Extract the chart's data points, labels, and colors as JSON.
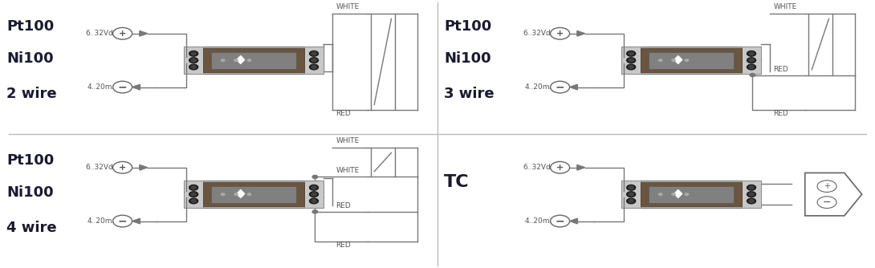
{
  "bg_color": "#ffffff",
  "line_color": "#666666",
  "text_dark": "#1a1a2e",
  "text_small": "#555555",
  "wire_gray": "#777777",
  "module_outer": "#a0a0a0",
  "module_mid": "#888888",
  "module_dark": "#5a4a3a",
  "module_inner": "#6a5a4a",
  "module_side": "#b0b0b0",
  "dot_color": "#1a1a1a",
  "sensor_fill": "#ffffff",
  "sensor_edge": "#777777",
  "divider_color": "#bbbbbb",
  "panel_labels": {
    "2wire": [
      "Pt100",
      "Ni100",
      "2 wire"
    ],
    "3wire": [
      "Pt100",
      "Ni100",
      "3 wire"
    ],
    "4wire": [
      "Pt100",
      "Ni100",
      "4 wire"
    ],
    "tc": [
      "TC",
      "",
      ""
    ]
  }
}
